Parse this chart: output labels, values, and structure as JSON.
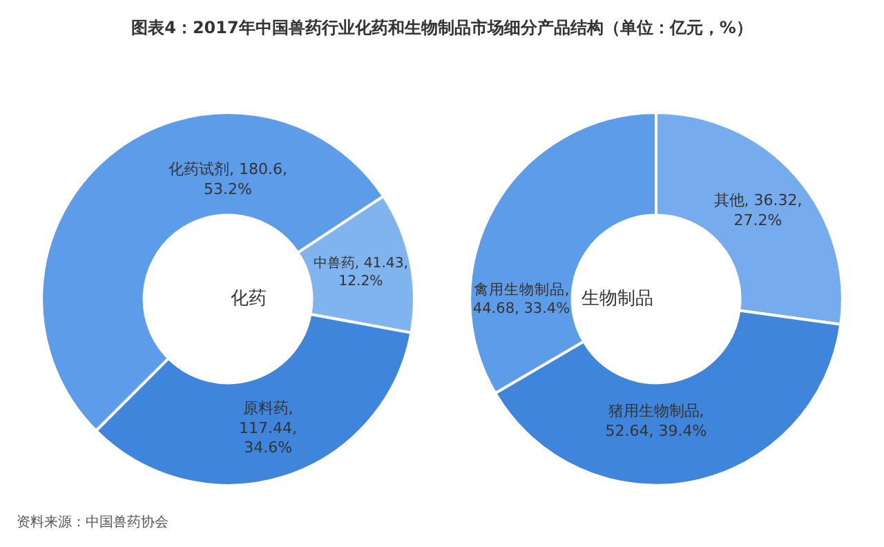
{
  "chart_data": [
    {
      "type": "donut",
      "title": "图表4：2017年中国兽药行业化药和生物制品市场细分产品结构（单位：亿元，%）",
      "categories": [
        "化药试剂",
        "中兽药",
        "原料药"
      ],
      "values": [
        180.6,
        41.43,
        117.44
      ],
      "colors": [
        "#5d9ce8",
        "#80b4ef",
        "#3f85dc"
      ],
      "value_labels": [
        "180.6,\n53.2%",
        "41.43,\n12.2%",
        ",\n117.44,\n34.6%"
      ],
      "annotations": [
        "化药",
        "资料来源：中国兽药协会"
      ]
    },
    {
      "type": "donut",
      "categories": [
        "其他",
        "猪用生物制品",
        "禽用生物制品"
      ],
      "values": [
        36.32,
        52.64,
        44.68
      ],
      "colors": [
        "#76abed",
        "#3f85dc",
        "#5d9ce8"
      ],
      "value_labels": [
        "36.32,\n27.2%",
        ",\n52.64, 39.4%",
        ",\n44.68, 33.4%"
      ],
      "annotations": [
        "生物制品"
      ]
    }
  ]
}
